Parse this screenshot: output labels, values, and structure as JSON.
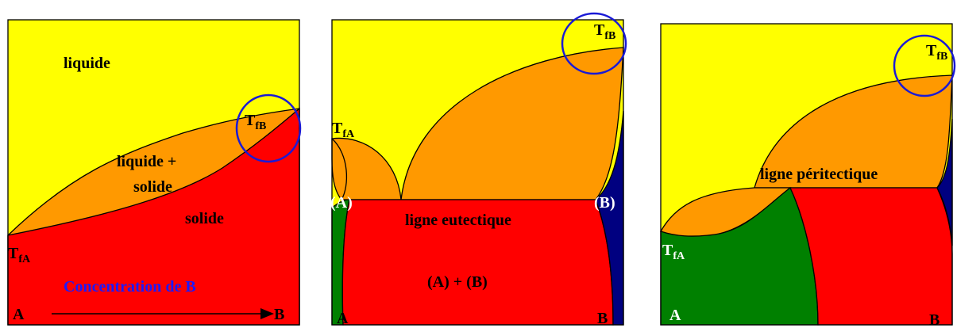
{
  "panels": [
    {
      "labels": {
        "liquid": "liquide",
        "tfb_main": "T",
        "tfb_sub": "fB",
        "mix1": "liquide +",
        "mix2": "solide",
        "solid": "solide",
        "tfa_main": "T",
        "tfa_sub": "fA",
        "axis": "Concentration de B",
        "a": "A",
        "b": "B"
      }
    },
    {
      "labels": {
        "tfa_main": "T",
        "tfa_sub": "fA",
        "tfb_main": "T",
        "tfb_sub": "fB",
        "pa": "(A)",
        "pb": "(B)",
        "line": "ligne eutectique",
        "mix": "(A) + (B)",
        "a": "A",
        "b": "B"
      }
    },
    {
      "labels": {
        "tfb_main": "T",
        "tfb_sub": "fB",
        "line": "ligne péritectique",
        "tfa_main": "T",
        "tfa_sub": "fA",
        "a": "A",
        "b": "B"
      }
    }
  ]
}
